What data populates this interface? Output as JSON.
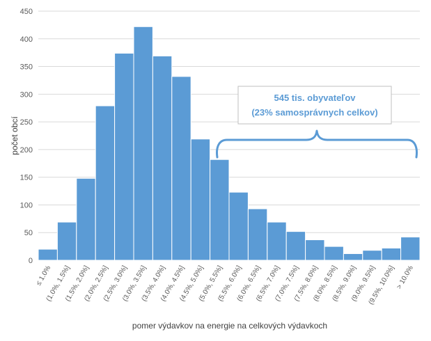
{
  "chart_data": {
    "type": "bar",
    "xlabel": "pomer výdavkov na energie na celkových výdavkoch",
    "ylabel": "počet obcí",
    "ylim": [
      0,
      450
    ],
    "yticks": [
      0,
      50,
      100,
      150,
      200,
      250,
      300,
      350,
      400,
      450
    ],
    "grid": true,
    "categories": [
      "≤ 1.0%",
      "(1.0%, 1.5%]",
      "(1.5%, 2.0%]",
      "(2.0%, 2.5%]",
      "(2.5%, 3.0%]",
      "(3.0%, 3.5%]",
      "(3.5%, 4.0%]",
      "(4.0%, 4.5%]",
      "(4.5%, 5.0%]",
      "(5.0%, 5.5%]",
      "(5.5%, 6.0%]",
      "(6.0%, 6.5%]",
      "(6.5%, 7.0%]",
      "(7.0%, 7.5%]",
      "(7.5%, 8.0%]",
      "(8.0%, 8.5%]",
      "(8.5%, 9.0%]",
      "(9.0%, 9.5%]",
      "(9.5%, 10.0%]",
      "> 10.0%"
    ],
    "values": [
      20,
      69,
      148,
      279,
      374,
      422,
      369,
      332,
      219,
      182,
      123,
      93,
      69,
      52,
      37,
      25,
      12,
      18,
      22,
      42
    ],
    "annotation": {
      "line1": "545 tis. obyvateľov",
      "line2": "(23% samosprávnych celkov)"
    }
  },
  "colors": {
    "bar": "#5b9bd5",
    "grid": "#d9d9d9",
    "annotation": "#5b9bd5"
  }
}
